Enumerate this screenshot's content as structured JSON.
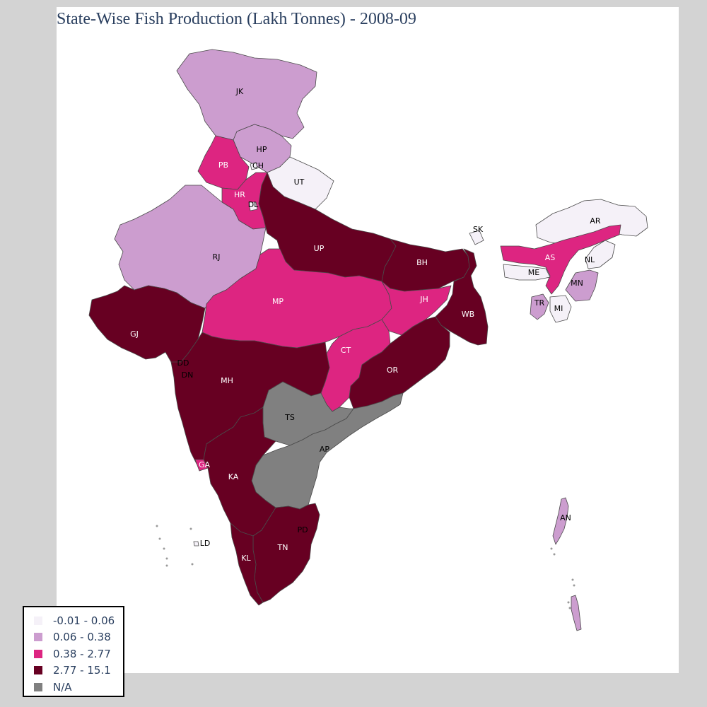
{
  "title": "State-Wise Fish Production (Lakh Tonnes) - 2008-09",
  "legend": {
    "items": [
      {
        "label": "-0.01 - 0.06",
        "color": "#f5f1f8"
      },
      {
        "label": "0.06 - 0.38",
        "color": "#cc9dcf"
      },
      {
        "label": "0.38 - 2.77",
        "color": "#dd2581"
      },
      {
        "label": "2.77 - 15.1",
        "color": "#670022"
      },
      {
        "label": "N/A",
        "color": "#808080"
      }
    ]
  },
  "map": {
    "regions": [
      {
        "code": "JK",
        "class": 1
      },
      {
        "code": "HP",
        "class": 1
      },
      {
        "code": "PB",
        "class": 2
      },
      {
        "code": "CH",
        "class": 0
      },
      {
        "code": "UT",
        "class": 0
      },
      {
        "code": "HR",
        "class": 2
      },
      {
        "code": "DL",
        "class": 0
      },
      {
        "code": "RJ",
        "class": 1
      },
      {
        "code": "UP",
        "class": 3
      },
      {
        "code": "BH",
        "class": 3
      },
      {
        "code": "SK",
        "class": 0
      },
      {
        "code": "AR",
        "class": 0
      },
      {
        "code": "AS",
        "class": 2
      },
      {
        "code": "NL",
        "class": 0
      },
      {
        "code": "ME",
        "class": 0
      },
      {
        "code": "MN",
        "class": 1
      },
      {
        "code": "TR",
        "class": 1
      },
      {
        "code": "MI",
        "class": 0
      },
      {
        "code": "GJ",
        "class": 3
      },
      {
        "code": "MP",
        "class": 2
      },
      {
        "code": "JH",
        "class": 2
      },
      {
        "code": "WB",
        "class": 3
      },
      {
        "code": "CT",
        "class": 2
      },
      {
        "code": "OR",
        "class": 3
      },
      {
        "code": "DD",
        "class": 0
      },
      {
        "code": "DN",
        "class": 0
      },
      {
        "code": "MH",
        "class": 3
      },
      {
        "code": "TS",
        "class": 4
      },
      {
        "code": "AP",
        "class": 4
      },
      {
        "code": "GA",
        "class": 2
      },
      {
        "code": "KA",
        "class": 3
      },
      {
        "code": "PD",
        "class": 0
      },
      {
        "code": "LD",
        "class": 0
      },
      {
        "code": "TN",
        "class": 3
      },
      {
        "code": "KL",
        "class": 3
      },
      {
        "code": "AN",
        "class": 1
      }
    ]
  }
}
